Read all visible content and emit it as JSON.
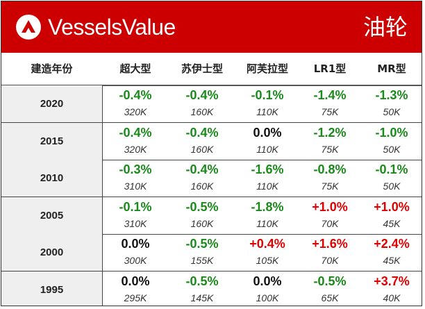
{
  "header": {
    "brand": "VesselsValue",
    "sector": "油轮",
    "accent": "#cc0000"
  },
  "columns": [
    "建造年份",
    "超大型",
    "苏伊士型",
    "阿芙拉型",
    "LR1型",
    "MR型"
  ],
  "rows": [
    {
      "year": "2020",
      "cells": [
        {
          "pct": "-0.4%",
          "val": "320K"
        },
        {
          "pct": "-0.4%",
          "val": "160K"
        },
        {
          "pct": "-0.1%",
          "val": "110K"
        },
        {
          "pct": "-1.4%",
          "val": "75K"
        },
        {
          "pct": "-1.3%",
          "val": "50K"
        }
      ]
    },
    {
      "year": "2015",
      "cells": [
        {
          "pct": "-0.4%",
          "val": "320K"
        },
        {
          "pct": "-0.4%",
          "val": "160K"
        },
        {
          "pct": "0.0%",
          "val": "110K"
        },
        {
          "pct": "-1.2%",
          "val": "75K"
        },
        {
          "pct": "-1.0%",
          "val": "50K"
        }
      ]
    },
    {
      "year": "2010",
      "cells": [
        {
          "pct": "-0.3%",
          "val": "310K"
        },
        {
          "pct": "-0.4%",
          "val": "160K"
        },
        {
          "pct": "-1.6%",
          "val": "110K"
        },
        {
          "pct": "-0.8%",
          "val": "75K"
        },
        {
          "pct": "-0.1%",
          "val": "50K"
        }
      ]
    },
    {
      "year": "2005",
      "cells": [
        {
          "pct": "-0.1%",
          "val": "310K"
        },
        {
          "pct": "-0.5%",
          "val": "160K"
        },
        {
          "pct": "-1.8%",
          "val": "110K"
        },
        {
          "pct": "+1.0%",
          "val": "70K"
        },
        {
          "pct": "+1.0%",
          "val": "45K"
        }
      ]
    },
    {
      "year": "2000",
      "cells": [
        {
          "pct": "0.0%",
          "val": "300K"
        },
        {
          "pct": "-0.5%",
          "val": "155K"
        },
        {
          "pct": "+0.4%",
          "val": "105K"
        },
        {
          "pct": "+1.6%",
          "val": "70K"
        },
        {
          "pct": "+2.4%",
          "val": "45K"
        }
      ]
    },
    {
      "year": "1995",
      "cells": [
        {
          "pct": "0.0%",
          "val": "295K"
        },
        {
          "pct": "-0.5%",
          "val": "145K"
        },
        {
          "pct": "0.0%",
          "val": "100K"
        },
        {
          "pct": "-0.5%",
          "val": "65K"
        },
        {
          "pct": "+3.7%",
          "val": "40K"
        }
      ]
    }
  ],
  "colors": {
    "negative": "#1a8a1a",
    "neutral": "#111111",
    "positive": "#e00000"
  }
}
